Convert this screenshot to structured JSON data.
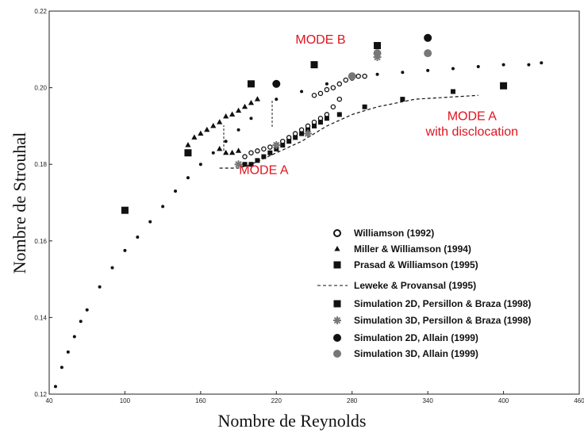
{
  "chart_data": {
    "type": "scatter",
    "xlabel": "Nombre de Reynolds",
    "ylabel": "Nombre de Strouhal",
    "xlim": [
      40,
      460
    ],
    "xticks": [
      40,
      100,
      160,
      220,
      280,
      340,
      400,
      460
    ],
    "ylim": [
      0.12,
      0.22
    ],
    "yticks": [
      0.12,
      0.14,
      0.16,
      0.18,
      {
        "value": 0.2,
        "label": "0.20"
      },
      0.22
    ],
    "annotations": [
      {
        "text": "MODE B",
        "x": 255,
        "y": 0.2115
      },
      {
        "text": "MODE A",
        "x": 210,
        "y": 0.1775
      },
      {
        "text": "MODE A",
        "x": 375,
        "y": 0.1915
      },
      {
        "text": "with disclocation",
        "x": 375,
        "y": 0.1875
      }
    ],
    "series": [
      {
        "color": "#111111",
        "marker": "dot",
        "x": [
          45,
          50,
          55,
          60,
          65,
          70,
          80,
          90,
          100,
          110,
          120,
          130,
          140,
          150,
          160,
          170,
          180,
          190,
          200,
          220,
          240,
          260,
          280,
          300,
          320,
          340,
          360,
          380,
          400,
          420,
          430
        ],
        "values": [
          0.122,
          0.127,
          0.131,
          0.135,
          0.139,
          0.142,
          0.148,
          0.153,
          0.1575,
          0.161,
          0.165,
          0.169,
          0.173,
          0.1765,
          0.18,
          0.183,
          0.186,
          0.189,
          0.192,
          0.197,
          0.199,
          0.201,
          0.2025,
          0.2035,
          0.204,
          0.2045,
          0.205,
          0.2055,
          0.206,
          0.206,
          0.2065
        ]
      },
      {
        "name": "Williamson (1992)",
        "color": "#111111",
        "marker": "circle-open",
        "x": [
          195,
          200,
          205,
          210,
          215,
          220,
          225,
          230,
          235,
          240,
          245,
          250,
          255,
          260,
          265,
          270,
          250,
          255,
          260,
          265,
          270,
          275,
          280,
          285,
          290
        ],
        "values": [
          0.182,
          0.183,
          0.1835,
          0.184,
          0.1845,
          0.185,
          0.186,
          0.187,
          0.188,
          0.189,
          0.19,
          0.191,
          0.192,
          0.193,
          0.195,
          0.197,
          0.198,
          0.1985,
          0.1995,
          0.2,
          0.201,
          0.202,
          0.2025,
          0.203,
          0.203
        ]
      },
      {
        "name": "Miller & Williamson (1994)",
        "color": "#111111",
        "marker": "triangle",
        "x": [
          150,
          155,
          160,
          165,
          170,
          175,
          180,
          185,
          190,
          195,
          200,
          205,
          175,
          180,
          185,
          190
        ],
        "values": [
          0.185,
          0.187,
          0.188,
          0.189,
          0.19,
          0.191,
          0.1925,
          0.193,
          0.194,
          0.195,
          0.196,
          0.197,
          0.184,
          0.183,
          0.183,
          0.1835
        ]
      },
      {
        "name": "Prasad & Williamson (1995)",
        "color": "#111111",
        "marker": "square-small",
        "x": [
          195,
          200,
          205,
          210,
          215,
          220,
          225,
          230,
          235,
          240,
          245,
          250,
          255,
          260,
          270,
          290,
          320,
          360
        ],
        "values": [
          0.18,
          0.18,
          0.181,
          0.182,
          0.183,
          0.184,
          0.185,
          0.186,
          0.187,
          0.188,
          0.189,
          0.19,
          0.191,
          0.192,
          0.193,
          0.195,
          0.197,
          0.199
        ]
      },
      {
        "name": "Leweke & Provansal (1995)",
        "color": "#111111",
        "marker": "dashed-line",
        "x": [
          175,
          190,
          200,
          220,
          240,
          260,
          280,
          300,
          330,
          380
        ],
        "values": [
          0.179,
          0.179,
          0.18,
          0.183,
          0.186,
          0.19,
          0.193,
          0.195,
          0.197,
          0.198
        ]
      },
      {
        "name": "Simulation 2D, Persillon & Braza (1998)",
        "color": "#111111",
        "marker": "square",
        "x": [
          100,
          150,
          200,
          250,
          300,
          400
        ],
        "values": [
          0.168,
          0.183,
          0.201,
          0.206,
          0.211,
          0.2005
        ]
      },
      {
        "name": "Simulation 3D, Persillon & Braza (1998)",
        "color": "#777777",
        "marker": "star",
        "x": [
          190,
          220,
          245,
          300
        ],
        "values": [
          0.18,
          0.185,
          0.188,
          0.208
        ]
      },
      {
        "name": "Simulation 2D, Allain (1999)",
        "color": "#111111",
        "marker": "circle",
        "x": [
          220,
          340
        ],
        "values": [
          0.201,
          0.213
        ]
      },
      {
        "name": "Simulation 3D, Allain (1999)",
        "color": "#777777",
        "marker": "circle",
        "x": [
          280,
          300,
          340
        ],
        "values": [
          0.203,
          0.209,
          0.209
        ]
      }
    ]
  }
}
